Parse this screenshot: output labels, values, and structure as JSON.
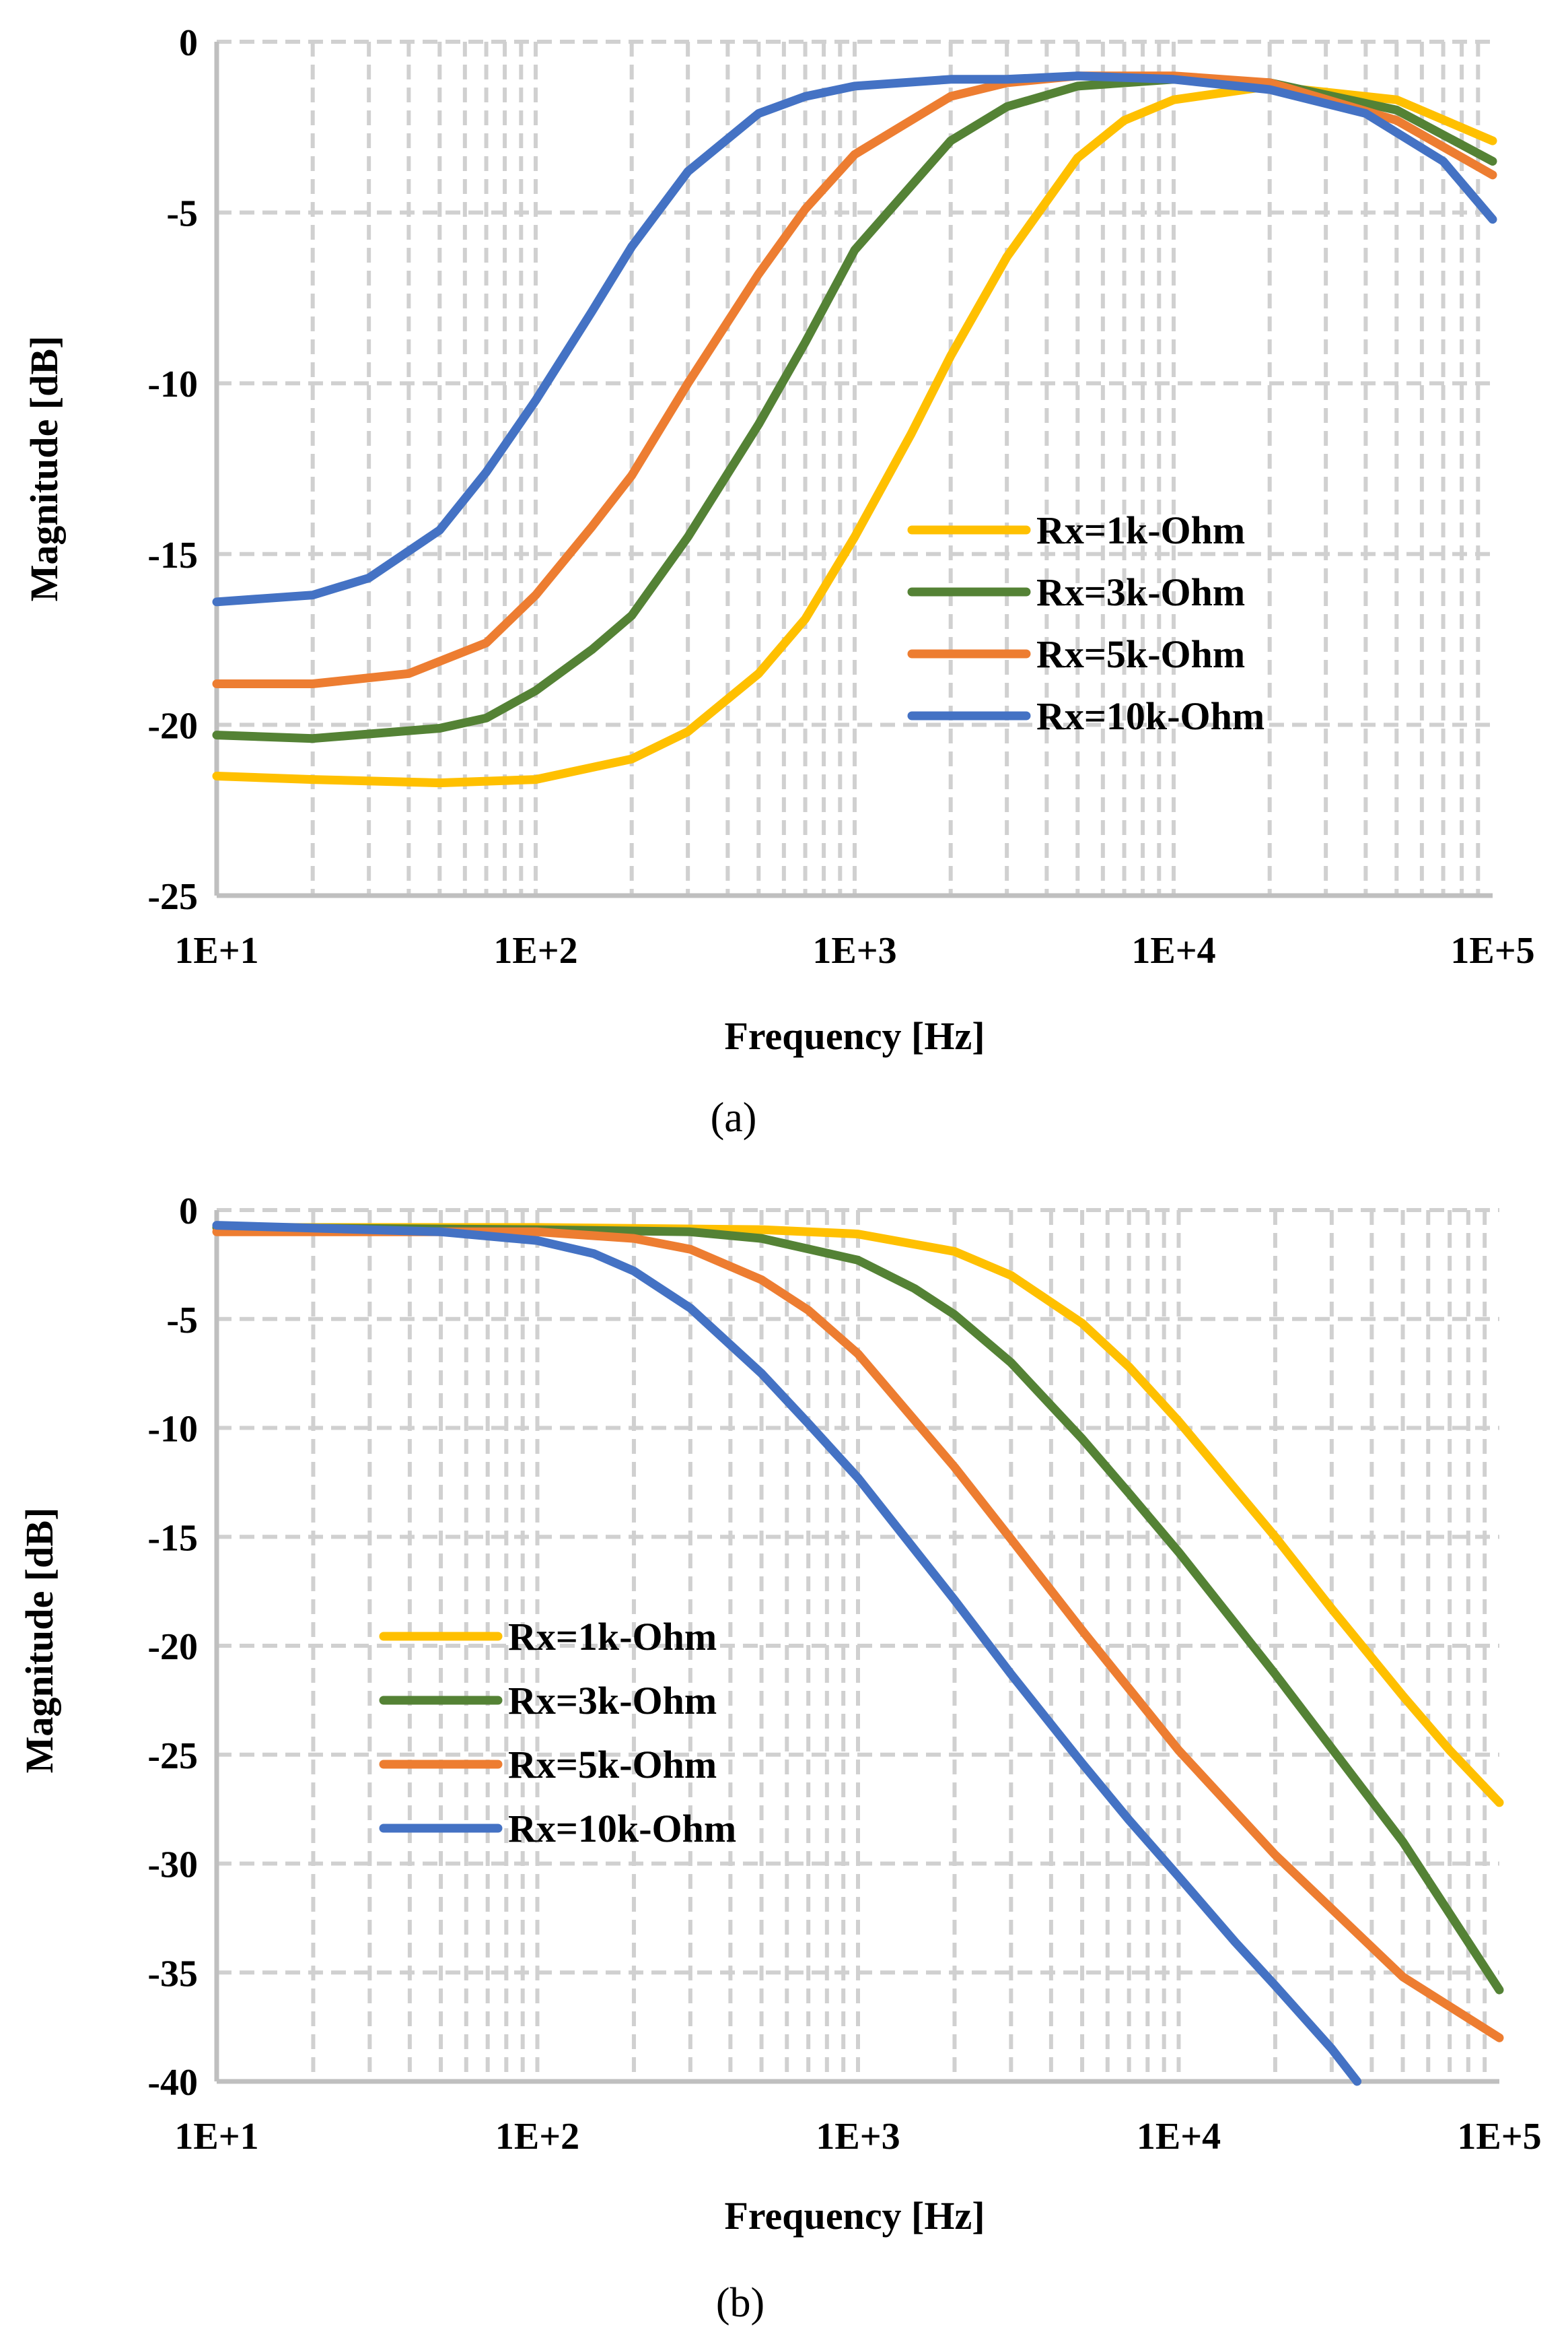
{
  "colors": {
    "yellow": "#FFC000",
    "green": "#548235",
    "orange": "#ED7D31",
    "blue": "#4472C4",
    "grid": "#D0D0D0",
    "axis": "#BFBFBF",
    "text": "#000000"
  },
  "chart_data": [
    {
      "id": "a",
      "type": "line",
      "caption": "(a)",
      "title": "",
      "xlabel": "Frequency [Hz]",
      "ylabel": "Magnitude [dB]",
      "xscale": "log",
      "xlim": [
        10,
        100000
      ],
      "ylim": [
        -25,
        0
      ],
      "xticks": [
        10,
        100,
        1000,
        10000,
        100000
      ],
      "xtick_labels": [
        "1E+1",
        "1E+2",
        "1E+3",
        "1E+4",
        "1E+5"
      ],
      "yticks": [
        0,
        -5,
        -10,
        -15,
        -20,
        -25
      ],
      "ytick_labels": [
        "0",
        "-5",
        "-10",
        "-15",
        "-20",
        "-25"
      ],
      "grid": true,
      "legend_position": "center-right",
      "series": [
        {
          "name": "Rx=1k-Ohm",
          "color_key": "yellow",
          "x": [
            10,
            20,
            50,
            100,
            200,
            300,
            500,
            700,
            1000,
            1500,
            2000,
            3000,
            5000,
            7000,
            10000,
            20000,
            50000,
            100000
          ],
          "y": [
            -21.5,
            -21.6,
            -21.7,
            -21.6,
            -21.0,
            -20.2,
            -18.5,
            -16.9,
            -14.5,
            -11.5,
            -9.2,
            -6.3,
            -3.4,
            -2.3,
            -1.7,
            -1.3,
            -1.7,
            -2.9
          ]
        },
        {
          "name": "Rx=3k-Ohm",
          "color_key": "green",
          "x": [
            10,
            20,
            50,
            70,
            100,
            150,
            200,
            300,
            500,
            700,
            1000,
            2000,
            3000,
            5000,
            10000,
            20000,
            50000,
            100000
          ],
          "y": [
            -20.3,
            -20.4,
            -20.1,
            -19.8,
            -19.0,
            -17.8,
            -16.8,
            -14.5,
            -11.2,
            -8.8,
            -6.1,
            -2.9,
            -1.9,
            -1.3,
            -1.1,
            -1.2,
            -2.0,
            -3.5
          ]
        },
        {
          "name": "Rx=5k-Ohm",
          "color_key": "orange",
          "x": [
            10,
            20,
            40,
            70,
            100,
            150,
            200,
            300,
            500,
            700,
            1000,
            2000,
            3000,
            5000,
            10000,
            20000,
            50000,
            100000
          ],
          "y": [
            -18.8,
            -18.8,
            -18.5,
            -17.6,
            -16.2,
            -14.2,
            -12.7,
            -10.0,
            -6.8,
            -4.9,
            -3.3,
            -1.6,
            -1.2,
            -1.0,
            -1.0,
            -1.2,
            -2.3,
            -3.9
          ]
        },
        {
          "name": "Rx=10k-Ohm",
          "color_key": "blue",
          "x": [
            10,
            20,
            30,
            50,
            70,
            100,
            150,
            200,
            300,
            500,
            700,
            1000,
            2000,
            3000,
            5000,
            10000,
            20000,
            40000,
            70000,
            100000
          ],
          "y": [
            -16.4,
            -16.2,
            -15.7,
            -14.3,
            -12.6,
            -10.5,
            -7.9,
            -6.0,
            -3.8,
            -2.1,
            -1.6,
            -1.3,
            -1.1,
            -1.1,
            -1.0,
            -1.1,
            -1.4,
            -2.1,
            -3.5,
            -5.2
          ]
        }
      ]
    },
    {
      "id": "b",
      "type": "line",
      "caption": "(b)",
      "title": "",
      "xlabel": "Frequency [Hz]",
      "ylabel": "Magnitude [dB]",
      "xscale": "log",
      "xlim": [
        10,
        100000
      ],
      "ylim": [
        -40,
        0
      ],
      "xticks": [
        10,
        100,
        1000,
        10000,
        100000
      ],
      "xtick_labels": [
        "1E+1",
        "1E+2",
        "1E+3",
        "1E+4",
        "1E+5"
      ],
      "yticks": [
        0,
        -5,
        -10,
        -15,
        -20,
        -25,
        -30,
        -35,
        -40
      ],
      "ytick_labels": [
        "0",
        "-5",
        "-10",
        "-15",
        "-20",
        "-25",
        "-30",
        "-35",
        "-40"
      ],
      "grid": true,
      "legend_position": "center-left",
      "series": [
        {
          "name": "Rx=1k-Ohm",
          "color_key": "yellow",
          "x": [
            10,
            100,
            500,
            1000,
            2000,
            3000,
            5000,
            7000,
            10000,
            20000,
            30000,
            50000,
            70000,
            100000
          ],
          "y": [
            -0.8,
            -0.8,
            -0.9,
            -1.1,
            -1.9,
            -3.0,
            -5.2,
            -7.2,
            -9.7,
            -15.0,
            -18.3,
            -22.3,
            -24.8,
            -27.2
          ]
        },
        {
          "name": "Rx=3k-Ohm",
          "color_key": "green",
          "x": [
            10,
            100,
            300,
            500,
            1000,
            1500,
            2000,
            3000,
            5000,
            7000,
            10000,
            20000,
            50000,
            100000
          ],
          "y": [
            -0.8,
            -0.9,
            -1.0,
            -1.3,
            -2.3,
            -3.6,
            -4.8,
            -7.0,
            -10.5,
            -13.0,
            -15.7,
            -21.3,
            -29.0,
            -35.8
          ]
        },
        {
          "name": "Rx=5k-Ohm",
          "color_key": "orange",
          "x": [
            10,
            100,
            200,
            300,
            500,
            700,
            1000,
            2000,
            3000,
            5000,
            10000,
            20000,
            50000,
            100000
          ],
          "y": [
            -1.0,
            -1.0,
            -1.3,
            -1.8,
            -3.2,
            -4.6,
            -6.6,
            -11.8,
            -15.1,
            -19.3,
            -24.8,
            -29.6,
            -35.2,
            -38.0
          ]
        },
        {
          "name": "Rx=10k-Ohm",
          "color_key": "blue",
          "x": [
            10,
            50,
            100,
            150,
            200,
            300,
            500,
            700,
            1000,
            2000,
            3000,
            5000,
            7000,
            10000,
            15000,
            20000,
            30000,
            36000
          ],
          "y": [
            -0.7,
            -1.0,
            -1.4,
            -2.0,
            -2.8,
            -4.5,
            -7.5,
            -9.8,
            -12.3,
            -17.9,
            -21.3,
            -25.4,
            -28.0,
            -30.6,
            -33.6,
            -35.6,
            -38.5,
            -40.0
          ]
        }
      ]
    }
  ]
}
